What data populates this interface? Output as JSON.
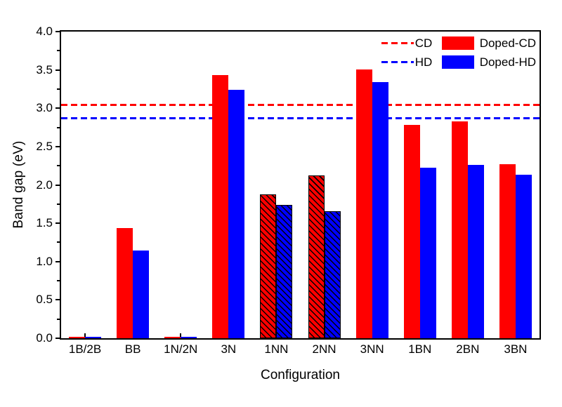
{
  "chart_data": {
    "type": "bar",
    "title": "",
    "xlabel": "Configuration",
    "ylabel": "Band gap (eV)",
    "ylim": [
      0,
      4.0
    ],
    "ytick_major_step": 0.5,
    "ytick_minor_step": 0.25,
    "ytick_labels": [
      "0.0",
      "0.5",
      "1.0",
      "1.5",
      "2.0",
      "2.5",
      "3.0",
      "3.5",
      "4.0"
    ],
    "grid": false,
    "legend_position": "top-right-inside",
    "categories": [
      "1B/2B",
      "BB",
      "1N/2N",
      "3N",
      "1NN",
      "2NN",
      "3NN",
      "1BN",
      "2BN",
      "3BN"
    ],
    "series": [
      {
        "name": "Doped-CD",
        "color": "#ff0000",
        "values": [
          0.02,
          1.44,
          0.02,
          3.43,
          1.88,
          2.12,
          3.51,
          2.78,
          2.83,
          2.27
        ]
      },
      {
        "name": "Doped-HD",
        "color": "#0000ff",
        "values": [
          0.02,
          1.14,
          0.02,
          3.24,
          1.74,
          1.66,
          3.34,
          2.22,
          2.26,
          2.13
        ]
      }
    ],
    "hatched_categories": [
      "1NN",
      "2NN"
    ],
    "reference_lines": [
      {
        "label": "CD",
        "value": 3.04,
        "color": "#ff0000",
        "style": "dashed"
      },
      {
        "label": "HD",
        "value": 2.87,
        "color": "#0000ff",
        "style": "dashed"
      }
    ]
  }
}
